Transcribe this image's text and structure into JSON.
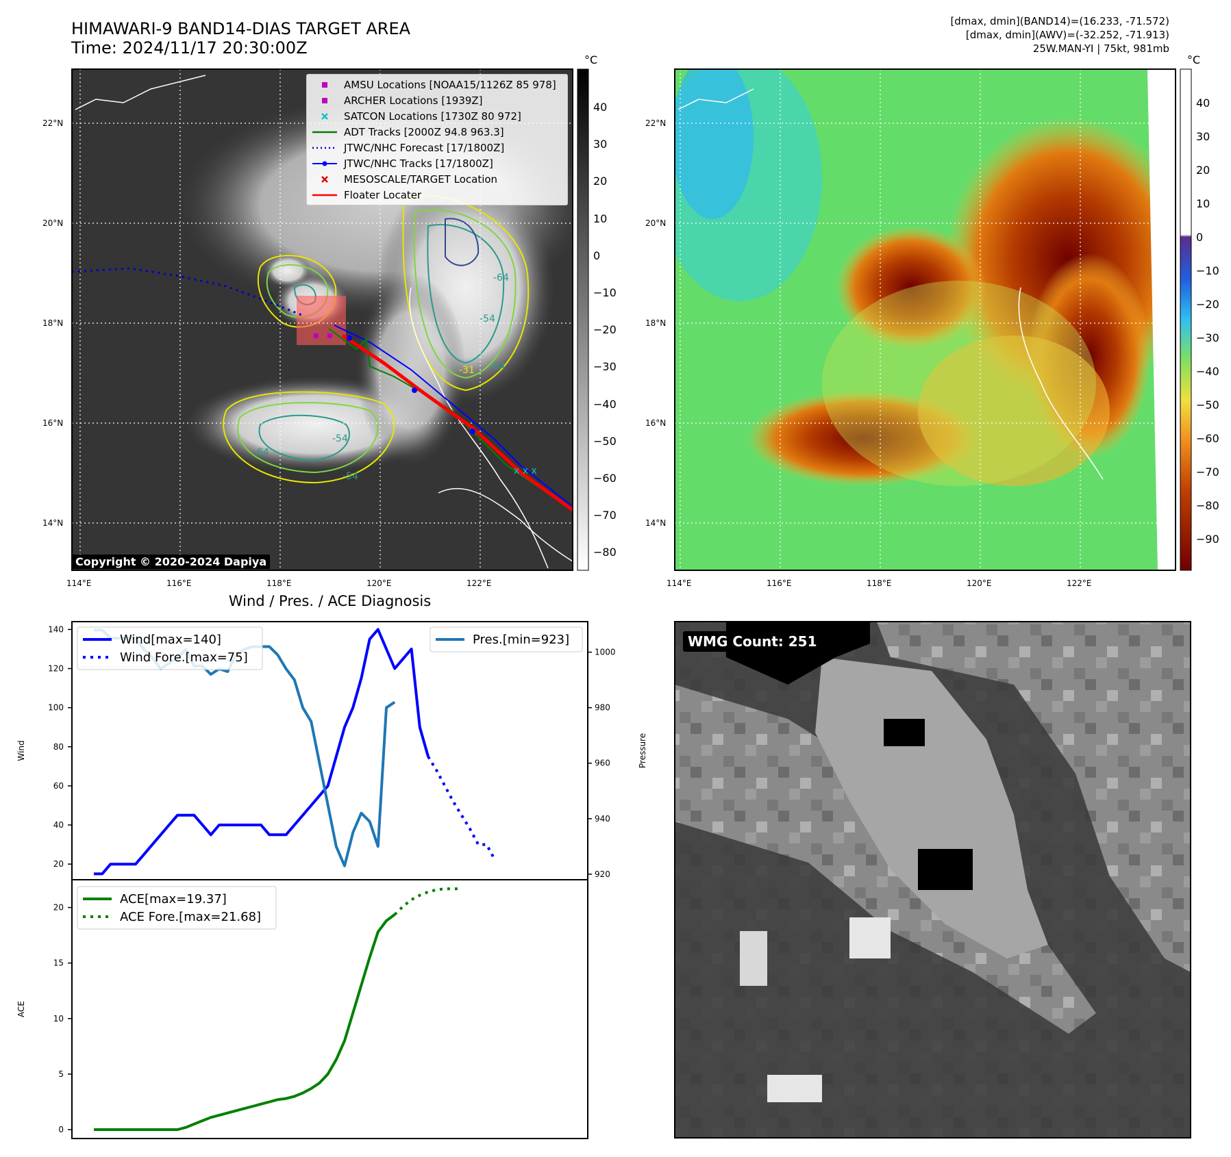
{
  "header": {
    "title_line1": "HIMAWARI-9 BAND14-DIAS TARGET AREA",
    "title_line2": "Time: 2024/11/17 20:30:00Z",
    "info_line1": "[dmax, dmin](BAND14)=(16.233, -71.572)",
    "info_line2": "[dmax, dmin](AWV)=(-32.252, -71.913)",
    "info_line3": "25W.MAN-YI | 75kt, 981mb"
  },
  "map": {
    "lat_ticks": [
      "22°N",
      "20°N",
      "18°N",
      "16°N",
      "14°N"
    ],
    "lon_ticks": [
      "114°E",
      "116°E",
      "118°E",
      "120°E",
      "122°E"
    ],
    "copyright": "Copyright © 2020-2024 Dapiya",
    "contour_labels": [
      "-64",
      "-54",
      "-64",
      "-64",
      "-54",
      "-31",
      "-54"
    ],
    "legend": [
      {
        "label": "AMSU Locations [NOAA15/1126Z 85 978]",
        "color": "#bf00bf",
        "kind": "square"
      },
      {
        "label": "ARCHER Locations [1939Z]",
        "color": "#bf00bf",
        "kind": "square"
      },
      {
        "label": "SATCON Locations [1730Z 80 972]",
        "color": "#17becf",
        "kind": "x"
      },
      {
        "label": "ADT Tracks [2000Z 94.8 963.3]",
        "color": "#008000",
        "kind": "line"
      },
      {
        "label": "JTWC/NHC Forecast [17/1800Z]",
        "color": "#0000cc",
        "kind": "dotted"
      },
      {
        "label": "JTWC/NHC Tracks [17/1800Z]",
        "color": "#0000ff",
        "kind": "linedot"
      },
      {
        "label": "MESOSCALE/TARGET Location",
        "color": "#e00000",
        "kind": "redx"
      },
      {
        "label": "Floater Locater",
        "color": "#ff0000",
        "kind": "line"
      }
    ]
  },
  "colorbar_gray": {
    "unit": "°C",
    "ticks": [
      "40",
      "30",
      "20",
      "10",
      "0",
      "−10",
      "−20",
      "−30",
      "−40",
      "−50",
      "−60",
      "−70",
      "−80"
    ]
  },
  "colorbar_color": {
    "unit": "°C",
    "ticks": [
      "40",
      "30",
      "20",
      "10",
      "0",
      "−10",
      "−20",
      "−30",
      "−40",
      "−50",
      "−60",
      "−70",
      "−80",
      "−90"
    ]
  },
  "wmg": {
    "label": "WMG Count: 251"
  },
  "chart_data": [
    {
      "type": "line",
      "title": "Wind / Pres. / ACE Diagnosis",
      "ylabel": "Wind",
      "y2label": "Pressure",
      "ylim": [
        12,
        144
      ],
      "y2lim": [
        918,
        1011
      ],
      "yticks": [
        20,
        40,
        60,
        80,
        100,
        120,
        140
      ],
      "y2ticks": [
        920,
        940,
        960,
        980,
        1000
      ],
      "series": [
        {
          "name": "Wind[max=140]",
          "color": "#0000ff",
          "style": "solid",
          "values": [
            15,
            15,
            20,
            20,
            20,
            20,
            25,
            30,
            35,
            40,
            45,
            45,
            45,
            40,
            35,
            40,
            40,
            40,
            40,
            40,
            40,
            35,
            35,
            35,
            40,
            45,
            50,
            55,
            60,
            75,
            90,
            100,
            115,
            135,
            140,
            130,
            120,
            125,
            130,
            90,
            75
          ]
        },
        {
          "name": "Wind Fore.[max=75]",
          "color": "#0000ff",
          "style": "dotted",
          "values": [
            75,
            68,
            60,
            52,
            45,
            38,
            30,
            30,
            22
          ]
        },
        {
          "name": "Pres.[min=923]",
          "color": "#1f77b4",
          "style": "solid",
          "axis": "right",
          "values": [
            1008,
            1008,
            1005,
            1005,
            1005,
            1005,
            1001,
            998,
            994,
            996,
            998,
            1001,
            995,
            995,
            992,
            994,
            993,
            999,
            1001,
            1002,
            1002,
            1002,
            999,
            994,
            990,
            980,
            975,
            960,
            945,
            930,
            923,
            935,
            942,
            939,
            930,
            980,
            982
          ]
        }
      ]
    },
    {
      "type": "line",
      "ylabel": "ACE",
      "ylim": [
        -0.8,
        22.5
      ],
      "yticks": [
        0,
        5,
        10,
        15,
        20
      ],
      "series": [
        {
          "name": "ACE[max=19.37]",
          "color": "#008000",
          "style": "solid",
          "values": [
            0,
            0,
            0,
            0,
            0,
            0,
            0,
            0,
            0,
            0,
            0,
            0.2,
            0.5,
            0.8,
            1.1,
            1.3,
            1.5,
            1.7,
            1.9,
            2.1,
            2.3,
            2.5,
            2.7,
            2.8,
            3.0,
            3.3,
            3.7,
            4.2,
            5.0,
            6.3,
            8.0,
            10.5,
            13.0,
            15.5,
            17.8,
            18.8,
            19.37
          ]
        },
        {
          "name": "ACE Fore.[max=21.68]",
          "color": "#008000",
          "style": "dotted",
          "values": [
            19.37,
            20.1,
            20.7,
            21.1,
            21.4,
            21.6,
            21.68,
            21.68,
            21.68
          ]
        }
      ]
    }
  ]
}
